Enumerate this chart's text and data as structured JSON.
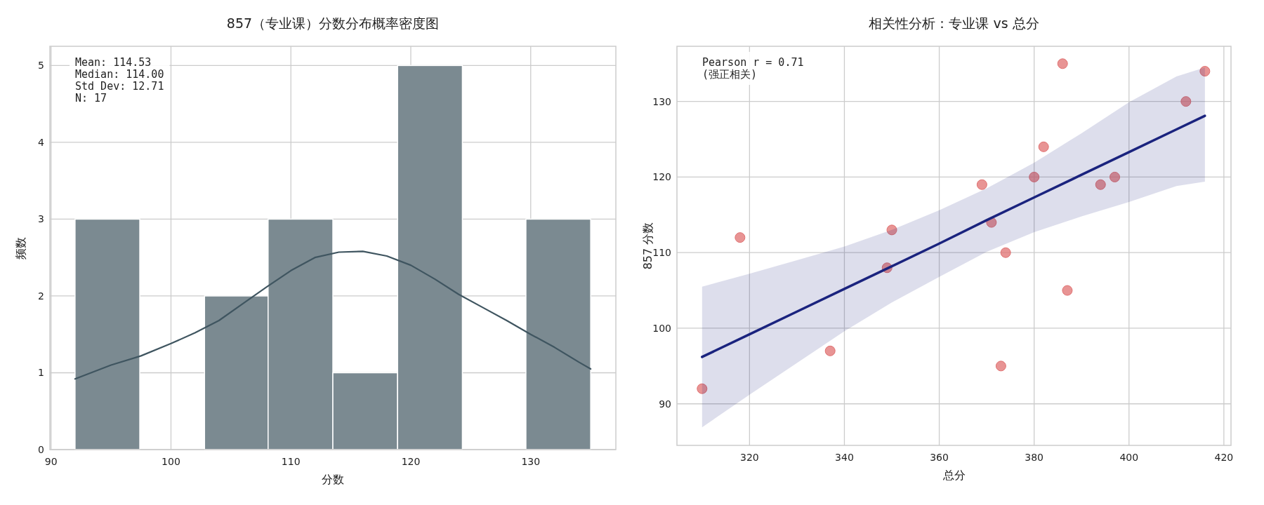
{
  "chart_data": [
    {
      "type": "histogram",
      "title": "857（专业课）分数分布概率密度图",
      "xlabel": "分数",
      "ylabel": "频数",
      "series": [
        {
          "bins": [
            92,
            97.4,
            102.8,
            108.1,
            113.5,
            118.9,
            124.3,
            129.6,
            135
          ],
          "values": [
            3,
            0,
            2,
            3,
            1,
            5,
            0,
            3
          ],
          "color": "#7b8a91"
        },
        {
          "type": "line",
          "x": [
            92,
            95,
            97.5,
            100,
            102,
            104,
            106,
            108,
            110,
            112,
            114,
            116,
            118,
            120,
            122,
            124,
            126,
            128,
            130,
            132,
            134,
            135
          ],
          "values": [
            0.92,
            1.1,
            1.22,
            1.38,
            1.52,
            1.68,
            1.9,
            2.12,
            2.33,
            2.5,
            2.57,
            2.58,
            2.52,
            2.4,
            2.22,
            2.02,
            1.85,
            1.68,
            1.5,
            1.33,
            1.14,
            1.05
          ],
          "color": "#3f5560"
        }
      ],
      "xlim": [
        89.9,
        137.1
      ],
      "ylim": [
        0,
        5.25
      ],
      "xticks": [
        90,
        100,
        110,
        120,
        130
      ],
      "yticks": [
        0,
        1,
        2,
        3,
        4,
        5
      ],
      "grid": true,
      "annotations": [
        "Mean: 114.53\nMedian: 114.00\nStd Dev: 12.71\nN: 17"
      ]
    },
    {
      "type": "scatter",
      "title": "相关性分析：专业课 vs 总分",
      "xlabel": "总分",
      "ylabel": "857 分数",
      "series": [
        {
          "x": [
            310,
            318,
            337,
            349,
            350,
            369,
            371,
            373,
            374,
            380,
            382,
            386,
            387,
            394,
            397,
            412,
            416
          ],
          "values": [
            92,
            112,
            97,
            108,
            113,
            119,
            114,
            95,
            110,
            120,
            124,
            135,
            105,
            119,
            120,
            130,
            134
          ],
          "color": "#e07070",
          "marker": "circle"
        },
        {
          "type": "line",
          "x": [
            310,
            320,
            330,
            340,
            350,
            360,
            370,
            380,
            390,
            400,
            410,
            416
          ],
          "values": [
            96.2,
            99.2,
            102.2,
            105.2,
            108.2,
            111.2,
            114.3,
            117.3,
            120.3,
            123.3,
            126.3,
            128.1
          ],
          "lower": [
            86.9,
            91.2,
            95.4,
            99.6,
            103.4,
            106.8,
            110.1,
            112.7,
            114.8,
            116.7,
            118.8,
            119.4
          ],
          "upper": [
            105.5,
            107.2,
            109.0,
            110.8,
            113.0,
            115.6,
            118.5,
            121.9,
            125.8,
            129.9,
            133.3,
            134.5
          ],
          "color": "#1a237e"
        }
      ],
      "xlim": [
        304.7,
        421.5
      ],
      "ylim": [
        84.5,
        137.3
      ],
      "xticks": [
        320,
        340,
        360,
        380,
        400,
        420
      ],
      "yticks": [
        90,
        100,
        110,
        120,
        130
      ],
      "grid": true,
      "annotations": [
        "Pearson r = 0.71\n(强正相关)"
      ]
    }
  ]
}
